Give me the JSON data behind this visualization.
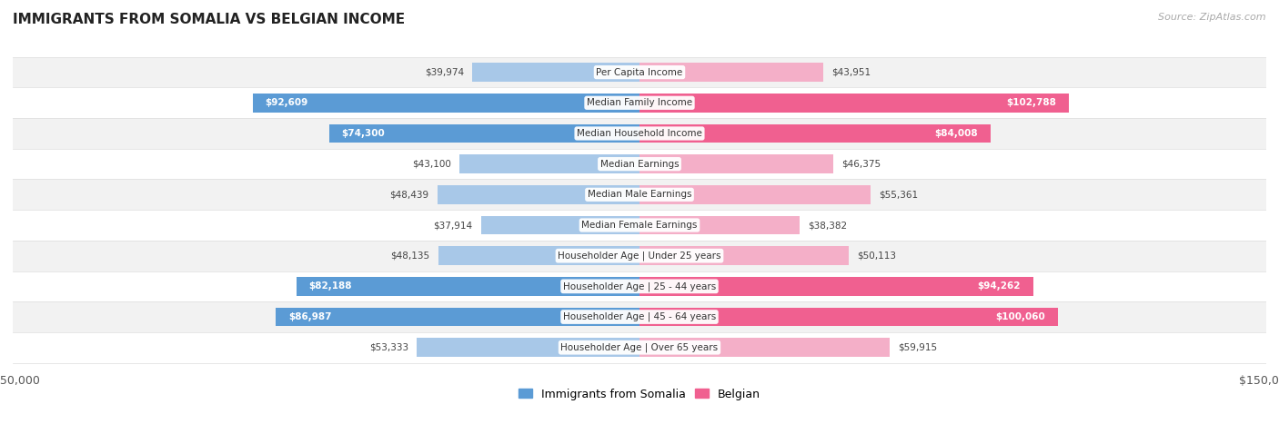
{
  "title": "IMMIGRANTS FROM SOMALIA VS BELGIAN INCOME",
  "source": "Source: ZipAtlas.com",
  "categories": [
    "Per Capita Income",
    "Median Family Income",
    "Median Household Income",
    "Median Earnings",
    "Median Male Earnings",
    "Median Female Earnings",
    "Householder Age | Under 25 years",
    "Householder Age | 25 - 44 years",
    "Householder Age | 45 - 64 years",
    "Householder Age | Over 65 years"
  ],
  "somalia_values": [
    39974,
    92609,
    74300,
    43100,
    48439,
    37914,
    48135,
    82188,
    86987,
    53333
  ],
  "belgian_values": [
    43951,
    102788,
    84008,
    46375,
    55361,
    38382,
    50113,
    94262,
    100060,
    59915
  ],
  "somalia_labels": [
    "$39,974",
    "$92,609",
    "$74,300",
    "$43,100",
    "$48,439",
    "$37,914",
    "$48,135",
    "$82,188",
    "$86,987",
    "$53,333"
  ],
  "belgian_labels": [
    "$43,951",
    "$102,788",
    "$84,008",
    "$46,375",
    "$55,361",
    "$38,382",
    "$50,113",
    "$94,262",
    "$100,060",
    "$59,915"
  ],
  "somalia_color_light": "#a8c8e8",
  "somalia_color_dark": "#5b9bd5",
  "belgian_color_light": "#f4afc8",
  "belgian_color_dark": "#f06090",
  "max_value": 150000,
  "bar_height": 0.62,
  "row_bg_odd": "#f2f2f2",
  "row_bg_even": "#ffffff",
  "inside_label_threshold": 60000,
  "background_color": "#ffffff",
  "text_dark": "#444444",
  "text_white": "#ffffff"
}
